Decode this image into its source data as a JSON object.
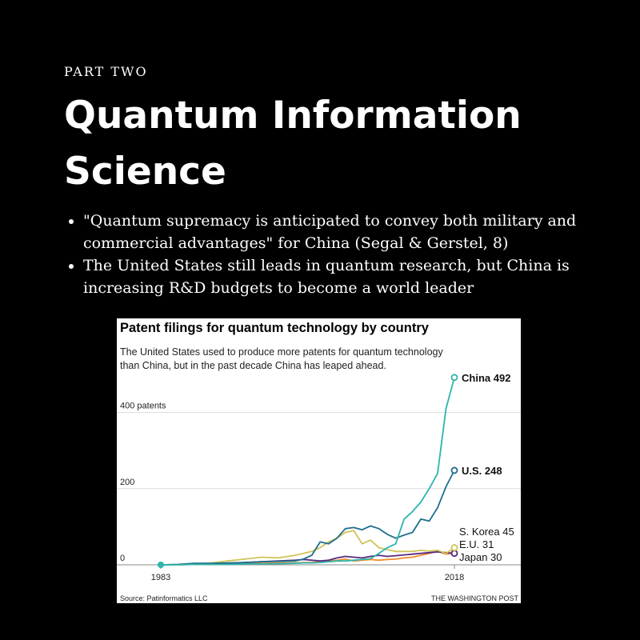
{
  "slide": {
    "eyebrow": "PART TWO",
    "title": "Quantum Information Science",
    "bullets": [
      "\"Quantum supremacy is anticipated to convey both military and commercial advantages\" for China (Segal & Gerstel, 8)",
      "The United States still leads in quantum research, but China is increasing R&D budgets to become a world leader"
    ]
  },
  "chart_data": {
    "type": "line",
    "title": "Patent filings for quantum technology by country",
    "subtitle_lines": [
      "The United States used to produce more patents for quantum technology",
      "than China, but in the past decade China has leaped ahead."
    ],
    "source": "Source: Patinformatics LLC",
    "credit": "THE WASHINGTON POST",
    "xlim": [
      1983,
      2018
    ],
    "x_tick_labels": [
      "1983",
      "2018"
    ],
    "ylim": [
      0,
      500
    ],
    "y_ticks": [
      {
        "value": 400,
        "label": "400 patents"
      },
      {
        "value": 200,
        "label": "200"
      },
      {
        "value": 0,
        "label": "0"
      }
    ],
    "grid": true,
    "series": [
      {
        "name": "China",
        "label": "China",
        "value_label": "492",
        "color": "#2bb5ad",
        "bold": true,
        "x": [
          1983,
          1985,
          1987,
          1989,
          1991,
          1993,
          1995,
          1997,
          1999,
          2000,
          2001,
          2002,
          2003,
          2004,
          2005,
          2006,
          2007,
          2008,
          2009,
          2010,
          2011,
          2012,
          2013,
          2014,
          2015,
          2016,
          2017,
          2018
        ],
        "y": [
          0,
          0,
          1,
          1,
          1,
          2,
          2,
          3,
          4,
          5,
          5,
          6,
          8,
          10,
          10,
          12,
          14,
          16,
          30,
          45,
          55,
          120,
          140,
          165,
          200,
          240,
          410,
          492
        ]
      },
      {
        "name": "U.S.",
        "label": "U.S.",
        "value_label": "248",
        "color": "#1e6e8c",
        "bold": true,
        "x": [
          1983,
          1985,
          1987,
          1989,
          1991,
          1993,
          1995,
          1997,
          1999,
          2000,
          2001,
          2002,
          2003,
          2004,
          2005,
          2006,
          2007,
          2008,
          2009,
          2010,
          2011,
          2012,
          2013,
          2014,
          2015,
          2016,
          2017,
          2018
        ],
        "y": [
          0,
          1,
          4,
          4,
          5,
          6,
          8,
          9,
          10,
          15,
          25,
          60,
          55,
          70,
          95,
          98,
          92,
          102,
          95,
          80,
          70,
          78,
          85,
          120,
          115,
          150,
          205,
          248
        ]
      },
      {
        "name": "S. Korea",
        "label": "S. Korea",
        "value_label": "45",
        "color": "#cfc458",
        "bold": false,
        "x": [
          1983,
          1985,
          1987,
          1989,
          1991,
          1993,
          1995,
          1997,
          1999,
          2000,
          2001,
          2002,
          2003,
          2004,
          2005,
          2006,
          2007,
          2008,
          2009,
          2010,
          2011,
          2012,
          2013,
          2014,
          2015,
          2016,
          2017,
          2018
        ],
        "y": [
          0,
          0,
          2,
          5,
          10,
          15,
          20,
          18,
          25,
          30,
          35,
          45,
          60,
          70,
          85,
          90,
          55,
          65,
          45,
          40,
          35,
          35,
          35,
          38,
          36,
          38,
          30,
          45
        ]
      },
      {
        "name": "E.U.",
        "label": "E.U.",
        "value_label": "31",
        "color": "#f08c2e",
        "bold": false,
        "x": [
          1983,
          1985,
          1987,
          1989,
          1991,
          1993,
          1995,
          1997,
          1999,
          2000,
          2001,
          2002,
          2003,
          2004,
          2005,
          2006,
          2007,
          2008,
          2009,
          2010,
          2011,
          2012,
          2013,
          2014,
          2015,
          2016,
          2017,
          2018
        ],
        "y": [
          0,
          0,
          1,
          2,
          3,
          3,
          4,
          5,
          5,
          6,
          6,
          8,
          10,
          12,
          15,
          10,
          12,
          14,
          12,
          14,
          15,
          18,
          20,
          25,
          30,
          35,
          28,
          31
        ]
      },
      {
        "name": "Japan",
        "label": "Japan",
        "value_label": "30",
        "color": "#5a2a82",
        "bold": false,
        "x": [
          1983,
          1985,
          1987,
          1989,
          1991,
          1993,
          1995,
          1997,
          1999,
          2000,
          2001,
          2002,
          2003,
          2004,
          2005,
          2006,
          2007,
          2008,
          2009,
          2010,
          2011,
          2012,
          2013,
          2014,
          2015,
          2016,
          2017,
          2018
        ],
        "y": [
          0,
          0,
          2,
          3,
          4,
          6,
          8,
          10,
          12,
          14,
          12,
          10,
          12,
          18,
          22,
          20,
          18,
          22,
          25,
          22,
          24,
          26,
          28,
          30,
          32,
          34,
          32,
          30
        ]
      }
    ]
  }
}
